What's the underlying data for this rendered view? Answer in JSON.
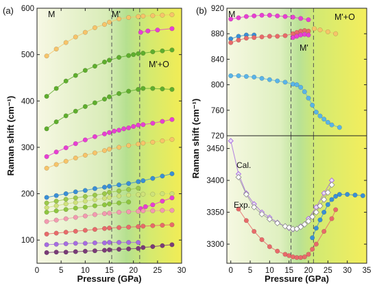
{
  "colors": {
    "phase_M": "#f3f5d2",
    "phase_Mp": "#b9e3a0",
    "phase_MpO": "#f3ef62",
    "orange": "#f7c46a",
    "green": "#5fae2e",
    "green_mid": "#8ec63f",
    "magenta": "#e83fd3",
    "pink": "#f39ab0",
    "red": "#e86a6a",
    "blue": "#3a8fd6",
    "cyan": "#5ab4e8",
    "purple": "#a66ce0",
    "darkpurple": "#7a3b78",
    "olive": "#9cc94a",
    "yellowgreen": "#cfe27a",
    "white_marker": "#ffffff"
  },
  "chart_data": [
    {
      "panel": "(a)",
      "type": "scatter",
      "xlabel": "Pressure (GPa)",
      "ylabel": "Raman shift (cm⁻¹)",
      "xlim": [
        0,
        30
      ],
      "ylim": [
        50,
        600
      ],
      "xticks": [
        0,
        5,
        10,
        15,
        20,
        25,
        30
      ],
      "yticks": [
        100,
        200,
        300,
        400,
        500,
        600
      ],
      "phase_boundaries": [
        15.5,
        21.3
      ],
      "phase_labels": [
        "M",
        "M'",
        "M'+O"
      ],
      "series": [
        {
          "color": "orange",
          "x": [
            2,
            4,
            6,
            8,
            10,
            12,
            14,
            15,
            17,
            19,
            21,
            22,
            24,
            26,
            28
          ],
          "y": [
            497,
            512,
            526,
            538,
            548,
            558,
            565,
            570,
            577,
            580,
            582,
            583,
            584,
            585,
            586
          ]
        },
        {
          "color": "magenta",
          "x": [
            21.5,
            23,
            25,
            28
          ],
          "y": [
            548,
            551,
            553,
            556
          ]
        },
        {
          "color": "green",
          "x": [
            2,
            4,
            6,
            8,
            10,
            12,
            14,
            15,
            17,
            19,
            20,
            21,
            22,
            24,
            26,
            28
          ],
          "y": [
            410,
            427,
            443,
            455,
            466,
            475,
            484,
            488,
            494,
            498,
            500,
            502,
            503,
            506,
            508,
            510
          ]
        },
        {
          "color": "green",
          "x": [
            2,
            4,
            6,
            8,
            10,
            12,
            14,
            15,
            17,
            19,
            21,
            22,
            24,
            26,
            28
          ],
          "y": [
            340,
            355,
            368,
            378,
            388,
            396,
            404,
            409,
            416,
            421,
            425,
            427,
            427,
            426,
            425
          ]
        },
        {
          "color": "magenta",
          "x": [
            2,
            4,
            6,
            8,
            10,
            12,
            14,
            15,
            16,
            17,
            18,
            19,
            20,
            21,
            22,
            24,
            26,
            28
          ],
          "y": [
            280,
            290,
            299,
            308,
            316,
            323,
            329,
            332,
            335,
            337,
            340,
            342,
            345,
            348,
            349,
            352,
            356,
            360
          ]
        },
        {
          "color": "orange",
          "x": [
            2,
            4,
            6,
            8,
            10,
            12,
            14,
            15,
            17,
            19,
            21,
            22,
            24,
            26,
            28
          ],
          "y": [
            255,
            263,
            270,
            277,
            283,
            288,
            293,
            296,
            300,
            304,
            307,
            309,
            311,
            314,
            317
          ]
        },
        {
          "color": "blue",
          "x": [
            2,
            4,
            6,
            8,
            10,
            12,
            14,
            15,
            17,
            19,
            21,
            22,
            24,
            26,
            28
          ],
          "y": [
            192,
            196,
            200,
            204,
            207,
            211,
            214,
            216,
            219,
            222,
            226,
            228,
            233,
            238,
            243
          ]
        },
        {
          "color": "olive",
          "x": [
            2,
            4,
            6,
            8,
            10,
            12,
            14,
            15,
            17,
            19,
            21
          ],
          "y": [
            180,
            184,
            188,
            191,
            194,
            197,
            200,
            203,
            206,
            209,
            212
          ]
        },
        {
          "color": "yellowgreen",
          "x": [
            2,
            4,
            6,
            8,
            10,
            12,
            14,
            15,
            17,
            19,
            21,
            22,
            24,
            26,
            28
          ],
          "y": [
            170,
            174,
            178,
            181,
            184,
            187,
            190,
            192,
            195,
            197,
            198,
            199,
            199,
            200,
            200
          ]
        },
        {
          "color": "green_mid",
          "x": [
            2,
            4,
            6,
            8,
            10,
            12,
            14,
            15,
            17,
            19
          ],
          "y": [
            160,
            163,
            166,
            169,
            171,
            174,
            176,
            178,
            180,
            182
          ]
        },
        {
          "color": "magenta",
          "x": [
            21.5,
            22.5,
            24,
            26,
            28
          ],
          "y": [
            168,
            172,
            176,
            184,
            191
          ]
        },
        {
          "color": "pink",
          "x": [
            2,
            4,
            6,
            8,
            10,
            12,
            14,
            15,
            17,
            19,
            21,
            22,
            24,
            26,
            28
          ],
          "y": [
            140,
            143,
            146,
            149,
            152,
            155,
            157,
            158,
            160,
            161,
            162,
            163,
            163,
            164,
            164
          ]
        },
        {
          "color": "red",
          "x": [
            2,
            4,
            6,
            8,
            10,
            12,
            14,
            15,
            17,
            19,
            21,
            22,
            24,
            26,
            28
          ],
          "y": [
            113,
            115,
            117,
            119,
            121,
            123,
            125,
            126,
            127,
            128,
            129,
            130,
            131,
            132,
            133
          ]
        },
        {
          "color": "purple",
          "x": [
            2,
            4,
            6,
            8,
            10,
            12,
            14,
            15,
            17,
            19,
            21
          ],
          "y": [
            90,
            91,
            92,
            93,
            93,
            94,
            94,
            95,
            95,
            95,
            95
          ]
        },
        {
          "color": "darkpurple",
          "x": [
            2,
            4,
            6,
            8,
            10,
            12,
            14,
            15,
            17,
            19,
            21,
            22,
            24,
            26,
            28
          ],
          "y": [
            73,
            74,
            74,
            75,
            76,
            77,
            78,
            79,
            80,
            81,
            82,
            84,
            86,
            88,
            90
          ]
        }
      ]
    },
    {
      "panel": "(b) top",
      "type": "scatter",
      "ylabel": "Raman shift (cm⁻¹)",
      "xlim": [
        -1,
        35
      ],
      "ylim": [
        720,
        920
      ],
      "yticks": [
        720,
        760,
        800,
        840,
        880,
        920
      ],
      "phase_boundaries": [
        15.5,
        21.3
      ],
      "phase_labels": [
        "M",
        "M'",
        "M'+O"
      ],
      "series": [
        {
          "color": "magenta",
          "x": [
            0,
            2,
            4,
            6,
            8,
            10,
            12,
            14,
            16,
            18,
            20
          ],
          "y": [
            903,
            905,
            907,
            908,
            909,
            909,
            908,
            907,
            906,
            904,
            902
          ]
        },
        {
          "color": "orange",
          "x": [
            21.5,
            23,
            25,
            27
          ],
          "y": [
            888,
            886,
            883,
            880
          ]
        },
        {
          "color": "blue",
          "x": [
            0,
            2,
            4,
            6
          ],
          "y": [
            872,
            876,
            878,
            878
          ]
        },
        {
          "color": "red",
          "x": [
            0,
            2,
            4,
            6,
            8,
            10,
            12,
            14,
            16,
            17,
            18,
            19,
            20
          ],
          "y": [
            866,
            870,
            873,
            874,
            875,
            876,
            876,
            877,
            880,
            882,
            884,
            885,
            884
          ]
        },
        {
          "color": "magenta",
          "x": [
            16,
            17,
            18,
            19,
            20
          ],
          "y": [
            874,
            876,
            878,
            879,
            878
          ]
        },
        {
          "color": "cyan",
          "x": [
            0,
            2,
            4,
            6,
            8,
            10,
            12,
            14,
            16,
            17,
            18,
            19,
            20,
            21,
            22,
            23,
            24,
            25,
            26,
            28
          ],
          "y": [
            814,
            814,
            813,
            812,
            810,
            808,
            806,
            804,
            801,
            800,
            796,
            789,
            779,
            768,
            757,
            751,
            746,
            741,
            737,
            733
          ]
        }
      ]
    },
    {
      "panel": "(b) bottom",
      "type": "line",
      "xlabel": "Pressure (GPa)",
      "xlim": [
        -1,
        35
      ],
      "ylim": [
        3270,
        3470
      ],
      "xticks": [
        0,
        5,
        10,
        15,
        20,
        25,
        30,
        35
      ],
      "yticks": [
        3300,
        3350,
        3400,
        3450
      ],
      "phase_boundaries": [
        15.5,
        21.3
      ],
      "annotations": [
        "Cal.",
        "Exp."
      ],
      "series": [
        {
          "name": "Cal.",
          "color": "purple",
          "x": [
            0,
            2,
            4,
            6,
            8,
            10,
            12,
            14,
            15,
            16,
            18,
            20,
            22,
            24,
            26
          ],
          "y": [
            3462,
            3410,
            3380,
            3363,
            3350,
            3342,
            3334,
            3328,
            3325,
            3323,
            3328,
            3340,
            3358,
            3380,
            3400
          ]
        },
        {
          "color": "white_marker",
          "x": [
            2,
            4,
            6,
            8,
            10,
            12,
            14,
            15,
            16,
            17,
            18,
            19,
            20,
            21,
            22,
            23,
            24,
            25,
            26
          ],
          "y": [
            3405,
            3378,
            3358,
            3347,
            3339,
            3333,
            3328,
            3326,
            3324,
            3324,
            3327,
            3331,
            3336,
            3343,
            3350,
            3360,
            3370,
            3381,
            3393
          ]
        },
        {
          "name": "Exp.",
          "color": "red",
          "x": [
            2,
            4,
            6,
            8,
            10,
            12,
            14,
            15,
            16,
            17,
            18,
            19,
            20,
            21,
            22,
            24,
            26,
            27
          ],
          "y": [
            3355,
            3337,
            3320,
            3307,
            3296,
            3289,
            3284,
            3282,
            3280,
            3279,
            3279,
            3280,
            3284,
            3292,
            3300,
            3320,
            3340,
            3354
          ]
        },
        {
          "color": "blue",
          "x": [
            21,
            22,
            23,
            24,
            25,
            26,
            27,
            28,
            30,
            32,
            34
          ],
          "y": [
            3310,
            3325,
            3338,
            3350,
            3362,
            3370,
            3375,
            3378,
            3378,
            3377,
            3376
          ]
        }
      ]
    }
  ],
  "panels": {
    "a": {
      "tag": "(a)",
      "phase_M": "M",
      "phase_Mp": "M'",
      "phase_MpO": "M'+O",
      "xlabel": "Pressure (GPa)",
      "ylabel": "Raman shift (cm⁻¹)"
    },
    "b": {
      "tag": "(b)",
      "phase_M": "M",
      "phase_Mp": "M'",
      "phase_MpO": "M'+O",
      "xlabel": "Pressure (GPa)",
      "ylabel": "Raman shift (cm⁻¹)",
      "cal": "Cal.",
      "exp": "Exp."
    }
  }
}
